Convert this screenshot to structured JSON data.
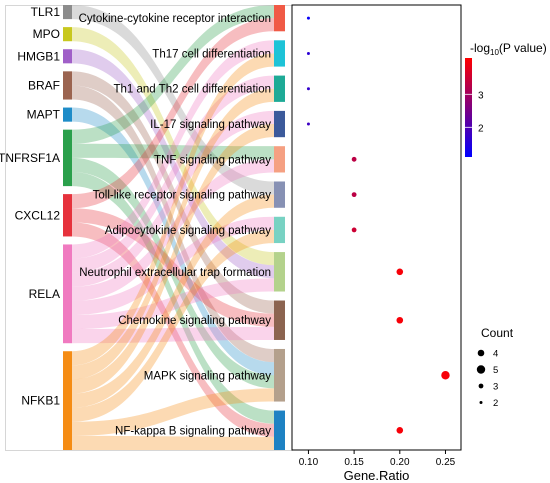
{
  "chart_data": {
    "type": "scatter",
    "subtype": "sankey-dot-plot",
    "genes": [
      {
        "name": "TLR1",
        "color": "#8c8c8c",
        "links": 1
      },
      {
        "name": "MPO",
        "color": "#c8c81e",
        "links": 1
      },
      {
        "name": "HMGB1",
        "color": "#a05fc8",
        "links": 1
      },
      {
        "name": "BRAF",
        "color": "#9b6450",
        "links": 2
      },
      {
        "name": "MAPT",
        "color": "#1e8cc8",
        "links": 1
      },
      {
        "name": "TNFRSF1A",
        "color": "#2aa04b",
        "links": 4
      },
      {
        "name": "CXCL12",
        "color": "#e6323c",
        "links": 3
      },
      {
        "name": "RELA",
        "color": "#f07ac0",
        "links": 7
      },
      {
        "name": "NFKB1",
        "color": "#f58c14",
        "links": 7
      }
    ],
    "pathways": [
      {
        "name": "Cytokine-cytokine receptor interaction",
        "color": "#f05a46",
        "gene_ratio": 0.1,
        "count": 2,
        "neglog10p": 1.2
      },
      {
        "name": "Th17 cell differentiation",
        "color": "#1ec3d7",
        "gene_ratio": 0.1,
        "count": 2,
        "neglog10p": 1.6
      },
      {
        "name": "Th1 and Th2 cell differentiation",
        "color": "#1eaa96",
        "gene_ratio": 0.1,
        "count": 2,
        "neglog10p": 1.7
      },
      {
        "name": "IL-17 signaling pathway",
        "color": "#3c5a9b",
        "gene_ratio": 0.1,
        "count": 2,
        "neglog10p": 1.8
      },
      {
        "name": "TNF signaling pathway",
        "color": "#f5a082",
        "gene_ratio": 0.15,
        "count": 3,
        "neglog10p": 3.3
      },
      {
        "name": "Toll-like receptor signaling pathway",
        "color": "#8791b4",
        "gene_ratio": 0.15,
        "count": 3,
        "neglog10p": 3.3
      },
      {
        "name": "Adipocytokine signaling pathway",
        "color": "#78d2c3",
        "gene_ratio": 0.15,
        "count": 3,
        "neglog10p": 3.5
      },
      {
        "name": "Neutrophil extracellular trap formation",
        "color": "#b4d28c",
        "gene_ratio": 0.2,
        "count": 4,
        "neglog10p": 4.0
      },
      {
        "name": "Chemokine signaling pathway",
        "color": "#8c6450",
        "gene_ratio": 0.2,
        "count": 4,
        "neglog10p": 4.0
      },
      {
        "name": "MAPK signaling pathway",
        "color": "#b4a08c",
        "gene_ratio": 0.25,
        "count": 5,
        "neglog10p": 4.0
      },
      {
        "name": "NF-kappa B signaling pathway",
        "color": "#1e82c3",
        "gene_ratio": 0.2,
        "count": 4,
        "neglog10p": 4.0
      }
    ],
    "links": [
      [
        "TLR1",
        "Toll-like receptor signaling pathway"
      ],
      [
        "MPO",
        "Neutrophil extracellular trap formation"
      ],
      [
        "HMGB1",
        "Neutrophil extracellular trap formation"
      ],
      [
        "BRAF",
        "Chemokine signaling pathway"
      ],
      [
        "BRAF",
        "MAPK signaling pathway"
      ],
      [
        "MAPT",
        "MAPK signaling pathway"
      ],
      [
        "TNFRSF1A",
        "Cytokine-cytokine receptor interaction"
      ],
      [
        "TNFRSF1A",
        "TNF signaling pathway"
      ],
      [
        "TNFRSF1A",
        "MAPK signaling pathway"
      ],
      [
        "TNFRSF1A",
        "NF-kappa B signaling pathway"
      ],
      [
        "CXCL12",
        "Cytokine-cytokine receptor interaction"
      ],
      [
        "CXCL12",
        "Chemokine signaling pathway"
      ],
      [
        "CXCL12",
        "NF-kappa B signaling pathway"
      ],
      [
        "RELA",
        "Th17 cell differentiation"
      ],
      [
        "RELA",
        "Th1 and Th2 cell differentiation"
      ],
      [
        "RELA",
        "IL-17 signaling pathway"
      ],
      [
        "RELA",
        "TNF signaling pathway"
      ],
      [
        "RELA",
        "Adipocytokine signaling pathway"
      ],
      [
        "RELA",
        "Neutrophil extracellular trap formation"
      ],
      [
        "RELA",
        "Chemokine signaling pathway"
      ],
      [
        "NFKB1",
        "Th17 cell differentiation"
      ],
      [
        "NFKB1",
        "Th1 and Th2 cell differentiation"
      ],
      [
        "NFKB1",
        "IL-17 signaling pathway"
      ],
      [
        "NFKB1",
        "Toll-like receptor signaling pathway"
      ],
      [
        "NFKB1",
        "Adipocytokine signaling pathway"
      ],
      [
        "NFKB1",
        "MAPK signaling pathway"
      ],
      [
        "NFKB1",
        "NF-kappa B signaling pathway"
      ]
    ],
    "x_axis": {
      "label": "Gene.Ratio",
      "ticks": [
        0.1,
        0.15,
        0.2,
        0.25
      ],
      "tick_labels": [
        "0.10",
        "0.15",
        "0.20",
        "0.25"
      ],
      "range": [
        0.082,
        0.267
      ]
    },
    "color_legend": {
      "title_main": "-log",
      "title_sub": "10",
      "title_rest": "(P value)",
      "ticks": [
        2,
        3
      ],
      "range": [
        1.1,
        4.1
      ],
      "low_color": "#0000ff",
      "high_color": "#ff0000"
    },
    "size_legend": {
      "title": "Count",
      "entries": [
        4,
        5,
        3,
        2
      ]
    },
    "grid": false
  }
}
